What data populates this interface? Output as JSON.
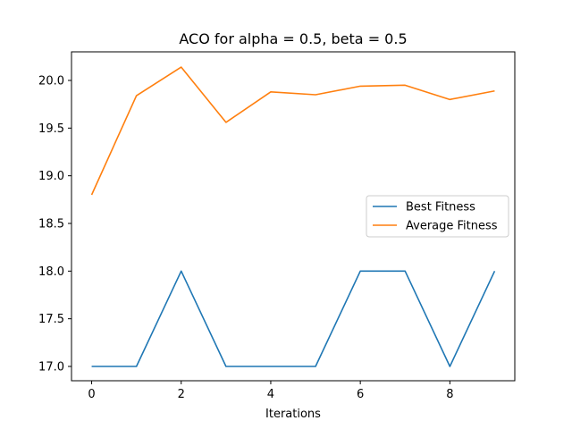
{
  "chart_data": {
    "type": "line",
    "title": "ACO for alpha = 0.5, beta = 0.5",
    "xlabel": "Iterations",
    "ylabel": "",
    "x": [
      0,
      1,
      2,
      3,
      4,
      5,
      6,
      7,
      8,
      9
    ],
    "xticks": [
      0,
      2,
      4,
      6,
      8
    ],
    "yticks": [
      17.0,
      17.5,
      18.0,
      18.5,
      19.0,
      19.5,
      20.0
    ],
    "xlim": [
      -0.45,
      9.45
    ],
    "ylim": [
      16.85,
      20.3
    ],
    "grid": false,
    "legend_position": "center-right",
    "series": [
      {
        "name": "Best Fitness",
        "color": "#1f77b4",
        "values": [
          17.0,
          17.0,
          18.0,
          17.0,
          17.0,
          17.0,
          18.0,
          18.0,
          17.0,
          18.0
        ]
      },
      {
        "name": "Average Fitness",
        "color": "#ff7f0e",
        "values": [
          18.8,
          19.84,
          20.14,
          19.56,
          19.88,
          19.85,
          19.94,
          19.95,
          19.8,
          19.89
        ]
      }
    ]
  }
}
